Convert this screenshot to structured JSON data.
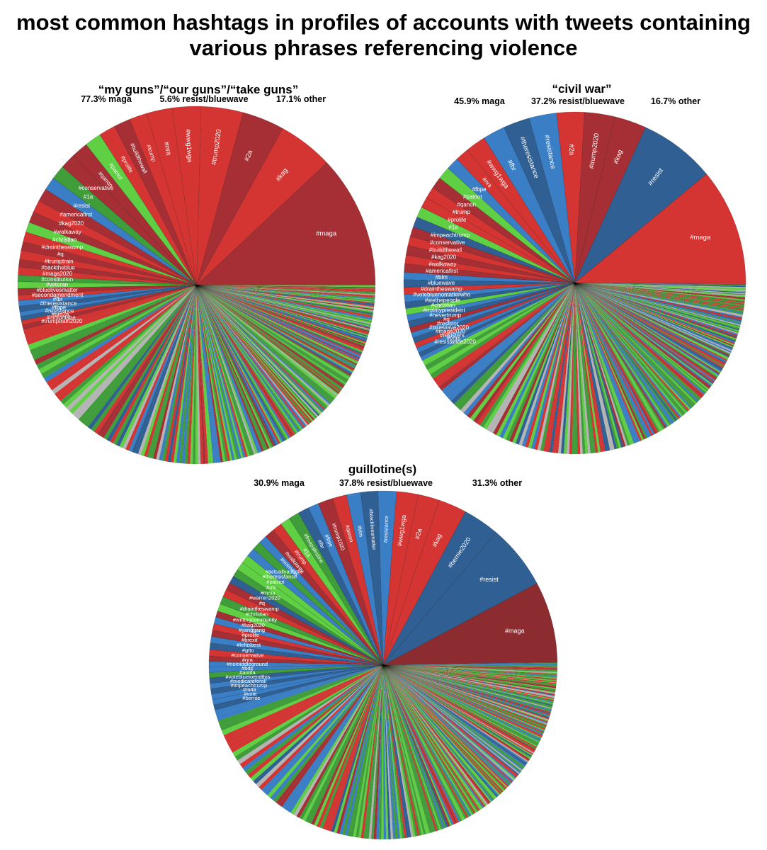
{
  "title_line1": "most common hashtags in profiles of accounts with tweets containing",
  "title_line2": "various phrases referencing violence",
  "colors": {
    "maga_dark": "#a52f34",
    "maga_red": "#d43432",
    "resist_dark": "#2f5f93",
    "resist_blue": "#3a7ec6",
    "green_bright": "#5fcf43",
    "green_dark": "#3f9d3a",
    "grey": "#b5b5b5"
  },
  "chart_data": [
    {
      "type": "pie",
      "title": "“my guns”/“our guns”/“take guns”",
      "shares": [
        {
          "label": "77.3% maga"
        },
        {
          "label": "5.6% resist/bluewave"
        },
        {
          "label": "17.1% other"
        }
      ],
      "labeled_slices": [
        {
          "label": "#maga",
          "value": 12.0,
          "color": "#a52f34"
        },
        {
          "label": "#kag",
          "value": 5.0,
          "color": "#d43432"
        },
        {
          "label": "#2a",
          "value": 3.8,
          "color": "#a52f34"
        },
        {
          "label": "#trump2020",
          "value": 3.8,
          "color": "#d43432"
        },
        {
          "label": "#wwg1wga",
          "value": 2.6,
          "color": "#d43432"
        },
        {
          "label": "#nra",
          "value": 2.3,
          "color": "#d43432"
        },
        {
          "label": "#trump",
          "value": 1.6,
          "color": "#d43432"
        },
        {
          "label": "#buildthewall",
          "value": 1.5,
          "color": "#a52f34"
        },
        {
          "label": "#prolife",
          "value": 1.5,
          "color": "#d43432"
        },
        {
          "label": "#patriot",
          "value": 1.5,
          "color": "#5fcf43"
        },
        {
          "label": "#qanon",
          "value": 1.5,
          "color": "#a52f34"
        },
        {
          "label": "#conservative",
          "value": 1.4,
          "color": "#a52f34"
        },
        {
          "label": "#1a",
          "value": 1.3,
          "color": "#3f9d3a"
        },
        {
          "label": "#resist",
          "value": 1.2,
          "color": "#3a7ec6"
        },
        {
          "label": "#americafirst",
          "value": 1.2,
          "color": "#a52f34"
        },
        {
          "label": "#kag2020",
          "value": 1.1,
          "color": "#d43432"
        },
        {
          "label": "#walkaway",
          "value": 1.0,
          "color": "#a52f34"
        },
        {
          "label": "#christian",
          "value": 0.9,
          "color": "#5fcf43"
        },
        {
          "label": "#draintheswamp",
          "value": 0.9,
          "color": "#d43432"
        },
        {
          "label": "#q",
          "value": 0.8,
          "color": "#a52f34"
        },
        {
          "label": "#trumptrain",
          "value": 0.8,
          "color": "#d43432"
        },
        {
          "label": "#backtheblue",
          "value": 0.7,
          "color": "#a52f34"
        },
        {
          "label": "#maga2020",
          "value": 0.7,
          "color": "#d43432"
        },
        {
          "label": "#constitution",
          "value": 0.6,
          "color": "#3f9d3a"
        },
        {
          "label": "#veteran",
          "value": 0.6,
          "color": "#5fcf43"
        },
        {
          "label": "#bluelivesmatter",
          "value": 0.6,
          "color": "#a52f34"
        },
        {
          "label": "#secondamendment",
          "value": 0.5,
          "color": "#d43432"
        },
        {
          "label": "#fbr",
          "value": 0.5,
          "color": "#3a7ec6"
        },
        {
          "label": "#theresistance",
          "value": 0.5,
          "color": "#2f5f93"
        },
        {
          "label": "#fbpe",
          "value": 0.4,
          "color": "#3a7ec6"
        },
        {
          "label": "#resistance",
          "value": 0.4,
          "color": "#2f5f93"
        },
        {
          "label": "#pro2a",
          "value": 0.4,
          "color": "#d43432"
        },
        {
          "label": "#molonlabe",
          "value": 0.4,
          "color": "#a52f34"
        },
        {
          "label": "#trumptrain2020",
          "value": 0.4,
          "color": "#d43432"
        }
      ],
      "other_slices": 240
    },
    {
      "type": "pie",
      "title": "“civil war”",
      "shares": [
        {
          "label": "45.9% maga"
        },
        {
          "label": "37.2% resist/bluewave"
        },
        {
          "label": "16.7% other"
        }
      ],
      "labeled_slices": [
        {
          "label": "#maga",
          "value": 11.0,
          "color": "#d43432"
        },
        {
          "label": "#resist",
          "value": 7.2,
          "color": "#2f5f93"
        },
        {
          "label": "#kag",
          "value": 3.0,
          "color": "#a52f34"
        },
        {
          "label": "#trump2020",
          "value": 2.9,
          "color": "#a52f34"
        },
        {
          "label": "#2a",
          "value": 2.6,
          "color": "#d43432"
        },
        {
          "label": "#resistance",
          "value": 2.6,
          "color": "#3a7ec6"
        },
        {
          "label": "#theresistance",
          "value": 2.5,
          "color": "#2f5f93"
        },
        {
          "label": "#fbr",
          "value": 2.1,
          "color": "#3a7ec6"
        },
        {
          "label": "#wwg1wga",
          "value": 1.9,
          "color": "#d43432"
        },
        {
          "label": "#nra",
          "value": 1.3,
          "color": "#d43432"
        },
        {
          "label": "#fbpe",
          "value": 1.2,
          "color": "#3a7ec6"
        },
        {
          "label": "#patriot",
          "value": 1.2,
          "color": "#5fcf43"
        },
        {
          "label": "#qanon",
          "value": 1.1,
          "color": "#a52f34"
        },
        {
          "label": "#trump",
          "value": 1.1,
          "color": "#d43432"
        },
        {
          "label": "#prolife",
          "value": 1.0,
          "color": "#d43432"
        },
        {
          "label": "#1a",
          "value": 1.0,
          "color": "#5fcf43"
        },
        {
          "label": "#impeachtrump",
          "value": 1.0,
          "color": "#2f5f93"
        },
        {
          "label": "#conservative",
          "value": 0.9,
          "color": "#a52f34"
        },
        {
          "label": "#buildthewall",
          "value": 0.9,
          "color": "#d43432"
        },
        {
          "label": "#kag2020",
          "value": 0.9,
          "color": "#a52f34"
        },
        {
          "label": "#walkaway",
          "value": 0.8,
          "color": "#d43432"
        },
        {
          "label": "#americafirst",
          "value": 0.8,
          "color": "#a52f34"
        },
        {
          "label": "#blm",
          "value": 0.7,
          "color": "#3a7ec6"
        },
        {
          "label": "#bluewave",
          "value": 0.7,
          "color": "#2f5f93"
        },
        {
          "label": "#draintheswamp",
          "value": 0.7,
          "color": "#d43432"
        },
        {
          "label": "#votebluenomatterwho",
          "value": 0.7,
          "color": "#3a7ec6"
        },
        {
          "label": "#wethepeople",
          "value": 0.6,
          "color": "#2f5f93"
        },
        {
          "label": "#christian",
          "value": 0.6,
          "color": "#5fcf43"
        },
        {
          "label": "#notmypresident",
          "value": 0.6,
          "color": "#3a7ec6"
        },
        {
          "label": "#nevertrump",
          "value": 0.6,
          "color": "#2f5f93"
        },
        {
          "label": "#q",
          "value": 0.5,
          "color": "#a52f34"
        },
        {
          "label": "#resistor",
          "value": 0.5,
          "color": "#3a7ec6"
        },
        {
          "label": "#bluewave2020",
          "value": 0.5,
          "color": "#2f5f93"
        },
        {
          "label": "#maga2020",
          "value": 0.5,
          "color": "#d43432"
        },
        {
          "label": "#resisters",
          "value": 0.5,
          "color": "#3a7ec6"
        },
        {
          "label": "#vote",
          "value": 0.4,
          "color": "#2f5f93"
        },
        {
          "label": "#resistance2020",
          "value": 0.4,
          "color": "#3a7ec6"
        }
      ],
      "other_slices": 220
    },
    {
      "type": "pie",
      "title": "guillotine(s)",
      "shares": [
        {
          "label": "30.9% maga"
        },
        {
          "label": "37.8% resist/bluewave"
        },
        {
          "label": "31.3% other"
        }
      ],
      "labeled_slices": [
        {
          "label": "#maga",
          "value": 7.5,
          "color": "#8c2c30"
        },
        {
          "label": "#resist",
          "value": 6.0,
          "color": "#2f5f93"
        },
        {
          "label": "#bernie2020",
          "value": 3.4,
          "color": "#2f5f93"
        },
        {
          "label": "#kag",
          "value": 2.6,
          "color": "#d43432"
        },
        {
          "label": "#2a",
          "value": 2.0,
          "color": "#d43432"
        },
        {
          "label": "#wwg1wga",
          "value": 2.0,
          "color": "#d43432"
        },
        {
          "label": "#resistance",
          "value": 1.7,
          "color": "#3a7ec6"
        },
        {
          "label": "#blacklivesmatter",
          "value": 1.6,
          "color": "#2f5f93"
        },
        {
          "label": "#blm",
          "value": 1.3,
          "color": "#3a7ec6"
        },
        {
          "label": "#qanon",
          "value": 1.3,
          "color": "#d43432"
        },
        {
          "label": "#trump2020",
          "value": 1.4,
          "color": "#a52f34"
        },
        {
          "label": "#fbpe",
          "value": 1.0,
          "color": "#3a7ec6"
        },
        {
          "label": "#fbr",
          "value": 1.0,
          "color": "#2f5f93"
        },
        {
          "label": "#freepalestine",
          "value": 1.0,
          "color": "#3f9d3a"
        },
        {
          "label": "#1a",
          "value": 0.9,
          "color": "#5fcf43"
        },
        {
          "label": "#trump",
          "value": 0.9,
          "color": "#d43432"
        },
        {
          "label": "#walkaway",
          "value": 0.9,
          "color": "#a52f34"
        },
        {
          "label": "#notmeus",
          "value": 0.8,
          "color": "#3a7ec6"
        },
        {
          "label": "#actuallyautistic",
          "value": 0.8,
          "color": "#3f9d3a"
        },
        {
          "label": "#theresistance",
          "value": 0.8,
          "color": "#3a7ec6"
        },
        {
          "label": "#patriot",
          "value": 0.8,
          "color": "#5fcf43"
        },
        {
          "label": "#ufc",
          "value": 0.8,
          "color": "#5fcf43"
        },
        {
          "label": "#mma",
          "value": 0.7,
          "color": "#3f9d3a"
        },
        {
          "label": "#warren2020",
          "value": 0.7,
          "color": "#2f5f93"
        },
        {
          "label": "#q",
          "value": 0.7,
          "color": "#a52f34"
        },
        {
          "label": "#draintheswamp",
          "value": 0.7,
          "color": "#d43432"
        },
        {
          "label": "#christian",
          "value": 0.7,
          "color": "#3f9d3a"
        },
        {
          "label": "#writingcommunity",
          "value": 0.7,
          "color": "#5fcf43"
        },
        {
          "label": "#kag2020",
          "value": 0.6,
          "color": "#a52f34"
        },
        {
          "label": "#yanggang",
          "value": 0.6,
          "color": "#3a7ec6"
        },
        {
          "label": "#prolife",
          "value": 0.6,
          "color": "#d43432"
        },
        {
          "label": "#brexit",
          "value": 0.6,
          "color": "#a52f34"
        },
        {
          "label": "#leftisbest",
          "value": 0.6,
          "color": "#3a7ec6"
        },
        {
          "label": "#gtto",
          "value": 0.6,
          "color": "#2f5f93"
        },
        {
          "label": "#conservative",
          "value": 0.6,
          "color": "#d43432"
        },
        {
          "label": "#nra",
          "value": 0.5,
          "color": "#a52f34"
        },
        {
          "label": "#nomiddleground",
          "value": 0.5,
          "color": "#3a7ec6"
        },
        {
          "label": "#bds",
          "value": 0.5,
          "color": "#3a7ec6"
        },
        {
          "label": "#antifa",
          "value": 0.5,
          "color": "#3f9d3a"
        },
        {
          "label": "#votebluetoendthis",
          "value": 0.5,
          "color": "#2f5f93"
        },
        {
          "label": "#medicareforall",
          "value": 0.5,
          "color": "#3a7ec6"
        },
        {
          "label": "#impeachtrump",
          "value": 0.5,
          "color": "#2f5f93"
        },
        {
          "label": "#m4a",
          "value": 0.5,
          "color": "#3a7ec6"
        },
        {
          "label": "#vote",
          "value": 0.5,
          "color": "#3a7ec6"
        },
        {
          "label": "#bernie",
          "value": 0.5,
          "color": "#2f5f93"
        }
      ],
      "other_slices": 260
    }
  ]
}
